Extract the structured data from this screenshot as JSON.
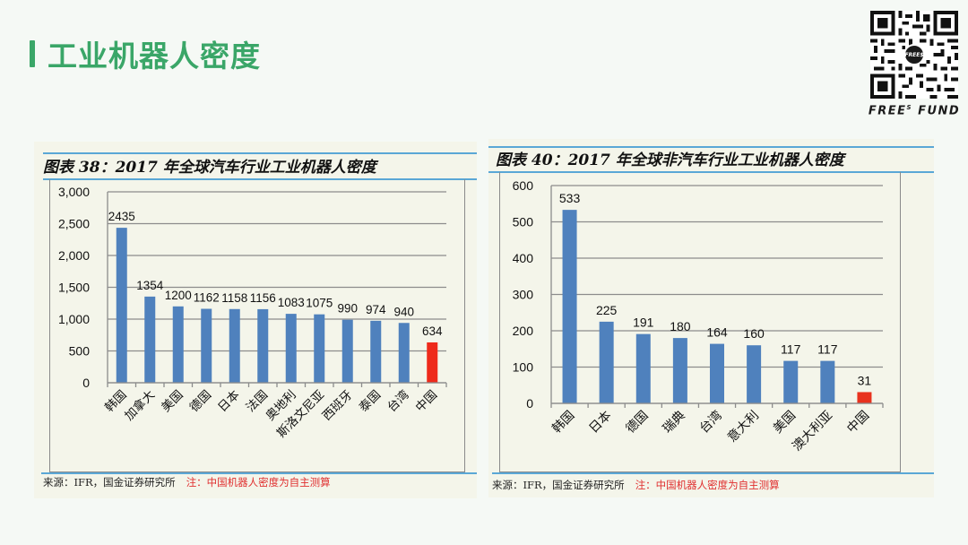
{
  "page": {
    "title": "工业机器人密度",
    "accent_color": "#3aa668"
  },
  "brand": {
    "qr_badge": "FREE$",
    "caption_main": "FREE",
    "caption_sup": "S",
    "caption_tail": "FUND"
  },
  "charts": [
    {
      "title": "图表 38：2017 年全球汽车行业工业机器人密度",
      "source": "来源：IFR，国金证券研究所",
      "note": "注：中国机器人密度为自主测算"
    },
    {
      "title": "图表 40：2017 年全球非汽车行业工业机器人密度",
      "source": "来源：IFR，国金证券研究所",
      "note": "注：中国机器人密度为自主测算"
    }
  ],
  "chart_data": [
    {
      "type": "bar",
      "title": "图表 38：2017 年全球汽车行业工业机器人密度",
      "categories": [
        "韩国",
        "加拿大",
        "美国",
        "德国",
        "日本",
        "法国",
        "奥地利",
        "斯洛文尼亚",
        "西班牙",
        "泰国",
        "台湾",
        "中国"
      ],
      "values": [
        2435,
        1354,
        1200,
        1162,
        1158,
        1156,
        1083,
        1075,
        990,
        974,
        940,
        634
      ],
      "value_labels": [
        "2435",
        "1354",
        "1200",
        "1162",
        "1158",
        "1156",
        "1083",
        "1075",
        "990",
        "974",
        "940",
        "634"
      ],
      "colors": [
        "#4f81bd",
        "#4f81bd",
        "#4f81bd",
        "#4f81bd",
        "#4f81bd",
        "#4f81bd",
        "#4f81bd",
        "#4f81bd",
        "#4f81bd",
        "#4f81bd",
        "#4f81bd",
        "#ee2a1b"
      ],
      "yticks": [
        "0",
        "500",
        "1,000",
        "1,500",
        "2,000",
        "2,500",
        "3,000"
      ],
      "ylim": [
        0,
        3000
      ],
      "xlabel": "",
      "ylabel": "",
      "grid": true,
      "legend": null
    },
    {
      "type": "bar",
      "title": "图表 40：2017 年全球非汽车行业工业机器人密度",
      "categories": [
        "韩国",
        "日本",
        "德国",
        "瑞典",
        "台湾",
        "意大利",
        "美国",
        "澳大利亚",
        "中国"
      ],
      "values": [
        533,
        225,
        191,
        180,
        164,
        160,
        117,
        117,
        31
      ],
      "value_labels": [
        "533",
        "225",
        "191",
        "180",
        "164",
        "160",
        "117",
        "117",
        "31"
      ],
      "colors": [
        "#4f81bd",
        "#4f81bd",
        "#4f81bd",
        "#4f81bd",
        "#4f81bd",
        "#4f81bd",
        "#4f81bd",
        "#4f81bd",
        "#e8321e"
      ],
      "yticks": [
        "0",
        "100",
        "200",
        "300",
        "400",
        "500",
        "600"
      ],
      "ylim": [
        0,
        600
      ],
      "xlabel": "",
      "ylabel": "",
      "grid": true,
      "legend": null
    }
  ]
}
